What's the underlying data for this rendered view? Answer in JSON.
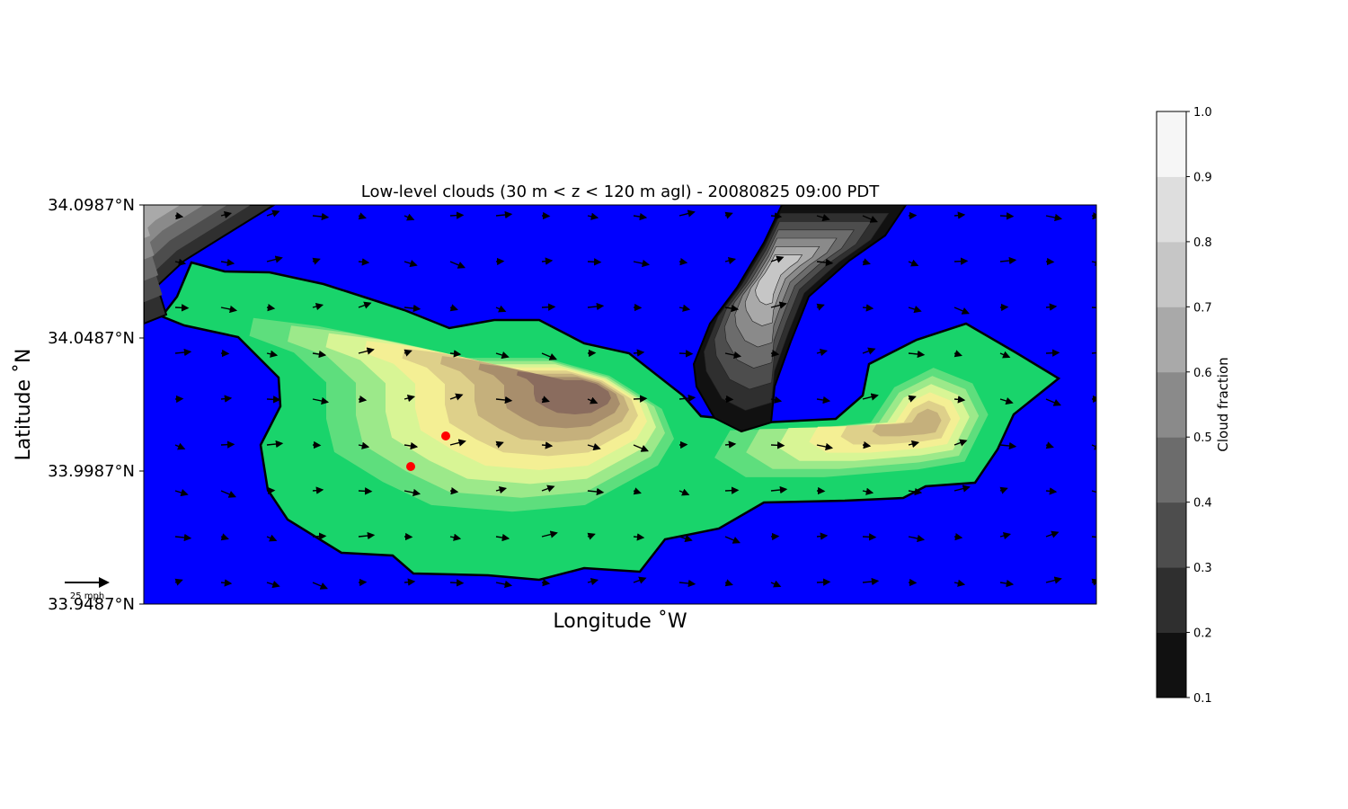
{
  "chart_data": {
    "type": "heatmap",
    "title": "Low-level clouds (30 m < z < 120 m agl) - 20080825 09:00 PDT",
    "xlabel": "Longitude $^\\circ$W",
    "xlabel_display": "Longitude ˚W",
    "ylabel_display": "Latitude ˚N",
    "y_ticks": [
      "34.0987°N",
      "34.0487°N",
      "33.9987°N",
      "33.9487°N"
    ],
    "ylim": [
      33.9487,
      34.0987
    ],
    "colorbar": {
      "label": "Cloud fraction",
      "ticks": [
        "0.1",
        "0.2",
        "0.3",
        "0.4",
        "0.5",
        "0.6",
        "0.7",
        "0.8",
        "0.9",
        "1.0"
      ],
      "colors": [
        "#111111",
        "#2f2f2f",
        "#4d4d4d",
        "#6c6c6c",
        "#8a8a8a",
        "#a9a9a9",
        "#c6c6c6",
        "#dedede",
        "#f6f6f6"
      ]
    },
    "background_color": "#0000ff",
    "terrain_colors": [
      "#19d46b",
      "#5ede7d",
      "#9ce98a",
      "#d8f595",
      "#f4ef94",
      "#ded08a",
      "#c5b07c",
      "#a88e6c",
      "#8a6c5e"
    ],
    "quiver_key": "25 mph",
    "markers": [
      {
        "lat": 34.0072,
        "label_color": "#ff0000"
      },
      {
        "lat": 33.996,
        "label_color": "#ff0000"
      }
    ]
  }
}
